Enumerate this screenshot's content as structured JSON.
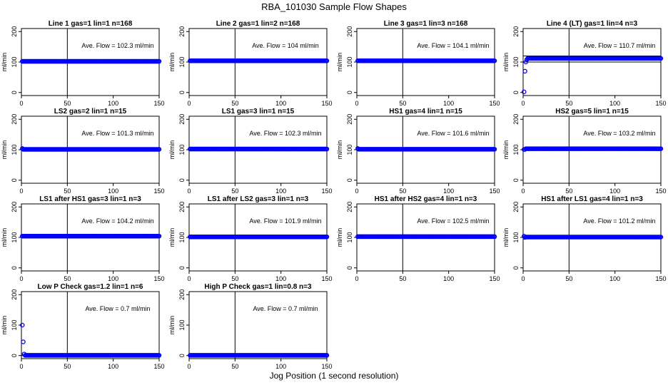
{
  "figure": {
    "title": "RBA_101030  Sample Flow Shapes",
    "xlabel": "Jog Position (1 second resolution)"
  },
  "style": {
    "point_color": "#0000ff",
    "line_color": "#000000"
  },
  "chart_data": [
    {
      "type": "scatter",
      "title": "Line 1 gas=1 lin=1 n=168",
      "ylabel": "ml/min",
      "xlim": [
        0,
        150
      ],
      "ylim": [
        -10,
        210
      ],
      "xticks": [
        "0",
        "50",
        "100",
        "150"
      ],
      "yticks": [
        "0",
        "100",
        "200"
      ],
      "vline_x": 50,
      "hline_y": [
        100
      ],
      "annotation": "Ave. Flow =  102.3  ml/min",
      "series": [
        {
          "name": "flow",
          "y_start": [],
          "y_level": 102.3
        }
      ]
    },
    {
      "type": "scatter",
      "title": "Line 2 gas=1 lin=2 n=168",
      "ylabel": "ml/min",
      "xlim": [
        0,
        150
      ],
      "ylim": [
        -10,
        210
      ],
      "xticks": [
        "0",
        "50",
        "100",
        "150"
      ],
      "yticks": [
        "0",
        "100",
        "200"
      ],
      "vline_x": 50,
      "hline_y": [
        100
      ],
      "annotation": "Ave. Flow =  104  ml/min",
      "series": [
        {
          "name": "flow",
          "y_start": [],
          "y_level": 104
        }
      ]
    },
    {
      "type": "scatter",
      "title": "Line 3 gas=1 lin=3 n=168",
      "ylabel": "ml/min",
      "xlim": [
        0,
        150
      ],
      "ylim": [
        -10,
        210
      ],
      "xticks": [
        "0",
        "50",
        "100",
        "150"
      ],
      "yticks": [
        "0",
        "100",
        "200"
      ],
      "vline_x": 50,
      "hline_y": [
        100
      ],
      "annotation": "Ave. Flow =  104.1  ml/min",
      "series": [
        {
          "name": "flow",
          "y_start": [],
          "y_level": 104.1
        }
      ]
    },
    {
      "type": "scatter",
      "title": "Line 4 (LT) gas=1 lin=4 n=3",
      "ylabel": "ml/min",
      "xlim": [
        0,
        150
      ],
      "ylim": [
        -10,
        210
      ],
      "xticks": [
        "0",
        "50",
        "100",
        "150"
      ],
      "yticks": [
        "0",
        "100",
        "200"
      ],
      "vline_x": 50,
      "hline_y": [
        100,
        120
      ],
      "annotation": "Ave. Flow =  110.7  ml/min",
      "series": [
        {
          "name": "flow",
          "y_start": [
            2,
            70,
            100,
            108
          ],
          "y_level": 112
        }
      ]
    },
    {
      "type": "scatter",
      "title": "LS2 gas=2 lin=1 n=15",
      "ylabel": "ml/min",
      "xlim": [
        0,
        150
      ],
      "ylim": [
        -10,
        210
      ],
      "xticks": [
        "0",
        "50",
        "100",
        "150"
      ],
      "yticks": [
        "0",
        "100",
        "200"
      ],
      "vline_x": 50,
      "hline_y": [
        100
      ],
      "annotation": "Ave. Flow =  101.3  ml/min",
      "series": [
        {
          "name": "flow",
          "y_start": [
            104
          ],
          "y_level": 101.3
        }
      ]
    },
    {
      "type": "scatter",
      "title": "LS1 gas=3 lin=1 n=15",
      "ylabel": "ml/min",
      "xlim": [
        0,
        150
      ],
      "ylim": [
        -10,
        210
      ],
      "xticks": [
        "0",
        "50",
        "100",
        "150"
      ],
      "yticks": [
        "0",
        "100",
        "200"
      ],
      "vline_x": 50,
      "hline_y": [
        100
      ],
      "annotation": "Ave. Flow =  102.3  ml/min",
      "series": [
        {
          "name": "flow",
          "y_start": [],
          "y_level": 102.3
        }
      ]
    },
    {
      "type": "scatter",
      "title": "HS1 gas=4 lin=1 n=15",
      "ylabel": "ml/min",
      "xlim": [
        0,
        150
      ],
      "ylim": [
        -10,
        210
      ],
      "xticks": [
        "0",
        "50",
        "100",
        "150"
      ],
      "yticks": [
        "0",
        "100",
        "200"
      ],
      "vline_x": 50,
      "hline_y": [
        100
      ],
      "annotation": "Ave. Flow =  101.6  ml/min",
      "series": [
        {
          "name": "flow",
          "y_start": [
            104
          ],
          "y_level": 101.6
        }
      ]
    },
    {
      "type": "scatter",
      "title": "HS2 gas=5 lin=1 n=15",
      "ylabel": "ml/min",
      "xlim": [
        0,
        150
      ],
      "ylim": [
        -10,
        210
      ],
      "xticks": [
        "0",
        "50",
        "100",
        "150"
      ],
      "yticks": [
        "0",
        "100",
        "200"
      ],
      "vline_x": 50,
      "hline_y": [
        100,
        106
      ],
      "annotation": "Ave. Flow =  103.2  ml/min",
      "series": [
        {
          "name": "flow",
          "y_start": [
            101,
            101
          ],
          "y_level": 103.2
        }
      ]
    },
    {
      "type": "scatter",
      "title": "LS1 after HS1 gas=3 lin=1 n=3",
      "ylabel": "ml/min",
      "xlim": [
        0,
        150
      ],
      "ylim": [
        -10,
        210
      ],
      "xticks": [
        "0",
        "50",
        "100",
        "150"
      ],
      "yticks": [
        "0",
        "100",
        "200"
      ],
      "vline_x": 50,
      "hline_y": [
        104
      ],
      "annotation": "Ave. Flow =  104.2  ml/min",
      "series": [
        {
          "name": "flow",
          "y_start": [],
          "y_level": 104.2
        }
      ]
    },
    {
      "type": "scatter",
      "title": "LS1 after LS2 gas=3 lin=1 n=3",
      "ylabel": "ml/min",
      "xlim": [
        0,
        150
      ],
      "ylim": [
        -10,
        210
      ],
      "xticks": [
        "0",
        "50",
        "100",
        "150"
      ],
      "yticks": [
        "0",
        "100",
        "200"
      ],
      "vline_x": 50,
      "hline_y": [
        100
      ],
      "annotation": "Ave. Flow =  101.9  ml/min",
      "series": [
        {
          "name": "flow",
          "y_start": [],
          "y_level": 101.9
        }
      ]
    },
    {
      "type": "scatter",
      "title": "HS1 after HS2 gas=4 lin=1 n=3",
      "ylabel": "ml/min",
      "xlim": [
        0,
        150
      ],
      "ylim": [
        -10,
        210
      ],
      "xticks": [
        "0",
        "50",
        "100",
        "150"
      ],
      "yticks": [
        "0",
        "100",
        "200"
      ],
      "vline_x": 50,
      "hline_y": [
        100
      ],
      "annotation": "Ave. Flow =  102.5  ml/min",
      "series": [
        {
          "name": "flow",
          "y_start": [],
          "y_level": 102.5
        }
      ]
    },
    {
      "type": "scatter",
      "title": "HS1 after LS1 gas=4 lin=1 n=3",
      "ylabel": "ml/min",
      "xlim": [
        0,
        150
      ],
      "ylim": [
        -10,
        210
      ],
      "xticks": [
        "0",
        "50",
        "100",
        "150"
      ],
      "yticks": [
        "0",
        "100",
        "200"
      ],
      "vline_x": 50,
      "hline_y": [
        100
      ],
      "annotation": "Ave. Flow =  101.2  ml/min",
      "series": [
        {
          "name": "flow",
          "y_start": [
            104,
            100
          ],
          "y_level": 101.2
        }
      ]
    },
    {
      "type": "scatter",
      "title": "Low P Check gas=1.2 lin=1 n=6",
      "ylabel": "ml/min",
      "xlim": [
        0,
        150
      ],
      "ylim": [
        -10,
        210
      ],
      "xticks": [
        "0",
        "50",
        "100",
        "150"
      ],
      "yticks": [
        "0",
        "100",
        "200"
      ],
      "vline_x": 50,
      "hline_y": [
        0
      ],
      "annotation": "Ave. Flow =  0.7  ml/min",
      "series": [
        {
          "name": "flow",
          "y_start": [
            100,
            45,
            5
          ],
          "y_level": 0.7
        }
      ]
    },
    {
      "type": "scatter",
      "title": "High P Check gas=1 lin=0.8 n=3",
      "ylabel": "ml/min",
      "xlim": [
        0,
        150
      ],
      "ylim": [
        -10,
        210
      ],
      "xticks": [
        "0",
        "50",
        "100",
        "150"
      ],
      "yticks": [
        "0",
        "100",
        "200"
      ],
      "vline_x": 50,
      "hline_y": [
        0
      ],
      "annotation": "Ave. Flow =  0.7  ml/min",
      "series": [
        {
          "name": "flow",
          "y_start": [],
          "y_level": 0.7
        }
      ]
    }
  ]
}
